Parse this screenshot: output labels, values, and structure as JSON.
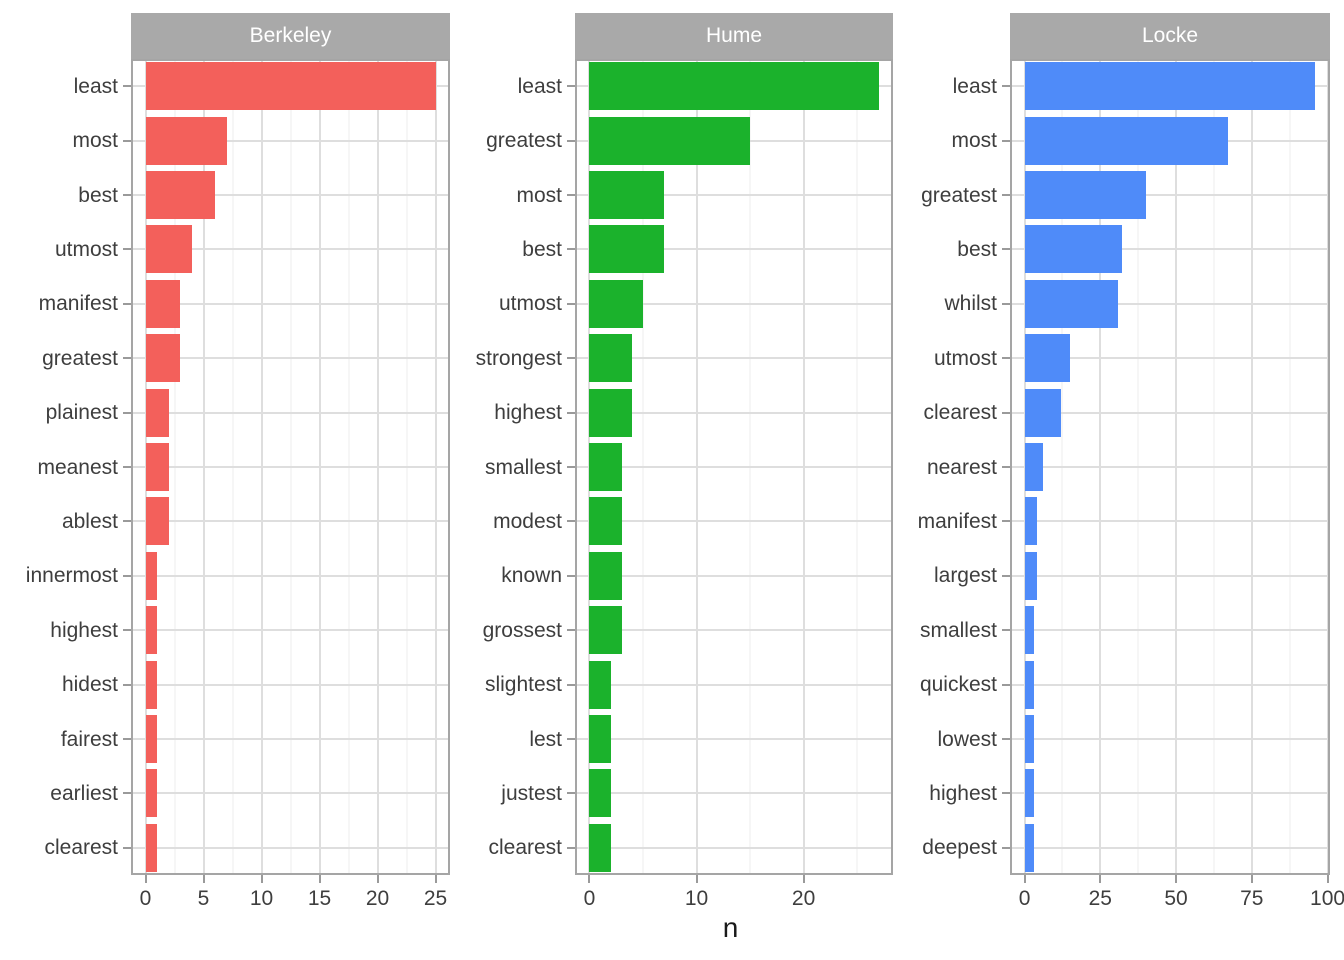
{
  "chart_data": {
    "type": "bar",
    "orientation": "horizontal",
    "xlabel": "n",
    "grid": true,
    "facets": [
      {
        "title": "Berkeley",
        "color": "#F3605B",
        "axis_max": 25,
        "ticks": [
          0,
          5,
          10,
          15,
          20,
          25
        ],
        "minor_ticks": [
          2.5,
          7.5,
          12.5,
          17.5,
          22.5
        ],
        "categories": [
          "least",
          "most",
          "best",
          "utmost",
          "manifest",
          "greatest",
          "plainest",
          "meanest",
          "ablest",
          "innermost",
          "highest",
          "hidest",
          "fairest",
          "earliest",
          "clearest"
        ],
        "values": [
          25,
          7,
          6,
          4,
          3,
          3,
          2,
          2,
          2,
          1,
          1,
          1,
          1,
          1,
          1
        ]
      },
      {
        "title": "Hume",
        "color": "#1BB22C",
        "axis_max": 27,
        "ticks": [
          0,
          10,
          20
        ],
        "minor_ticks": [
          5,
          15,
          25
        ],
        "categories": [
          "least",
          "greatest",
          "most",
          "best",
          "utmost",
          "strongest",
          "highest",
          "smallest",
          "modest",
          "known",
          "grossest",
          "slightest",
          "lest",
          "justest",
          "clearest"
        ],
        "values": [
          27,
          15,
          7,
          7,
          5,
          4,
          4,
          3,
          3,
          3,
          3,
          2,
          2,
          2,
          2
        ]
      },
      {
        "title": "Locke",
        "color": "#4F8BF9",
        "axis_max": 96,
        "ticks": [
          0,
          25,
          50,
          75,
          100
        ],
        "minor_ticks": [
          12.5,
          37.5,
          62.5,
          87.5
        ],
        "categories": [
          "least",
          "most",
          "greatest",
          "best",
          "whilst",
          "utmost",
          "clearest",
          "nearest",
          "manifest",
          "largest",
          "smallest",
          "quickest",
          "lowest",
          "highest",
          "deepest"
        ],
        "values": [
          96,
          67,
          40,
          32,
          31,
          15,
          12,
          6,
          4,
          4,
          3,
          3,
          3,
          3,
          3
        ]
      }
    ],
    "style": {
      "strip_background": "#A9A9A9",
      "strip_text_color": "#FFFFFF",
      "panel_border": "#A5A5A5",
      "grid_major": "#DEDEDE",
      "grid_minor": "#ECECEC",
      "axis_text_color": "#3E3E3E",
      "axis_title_color": "#1A1A1A",
      "background": "#FFFFFF"
    }
  }
}
